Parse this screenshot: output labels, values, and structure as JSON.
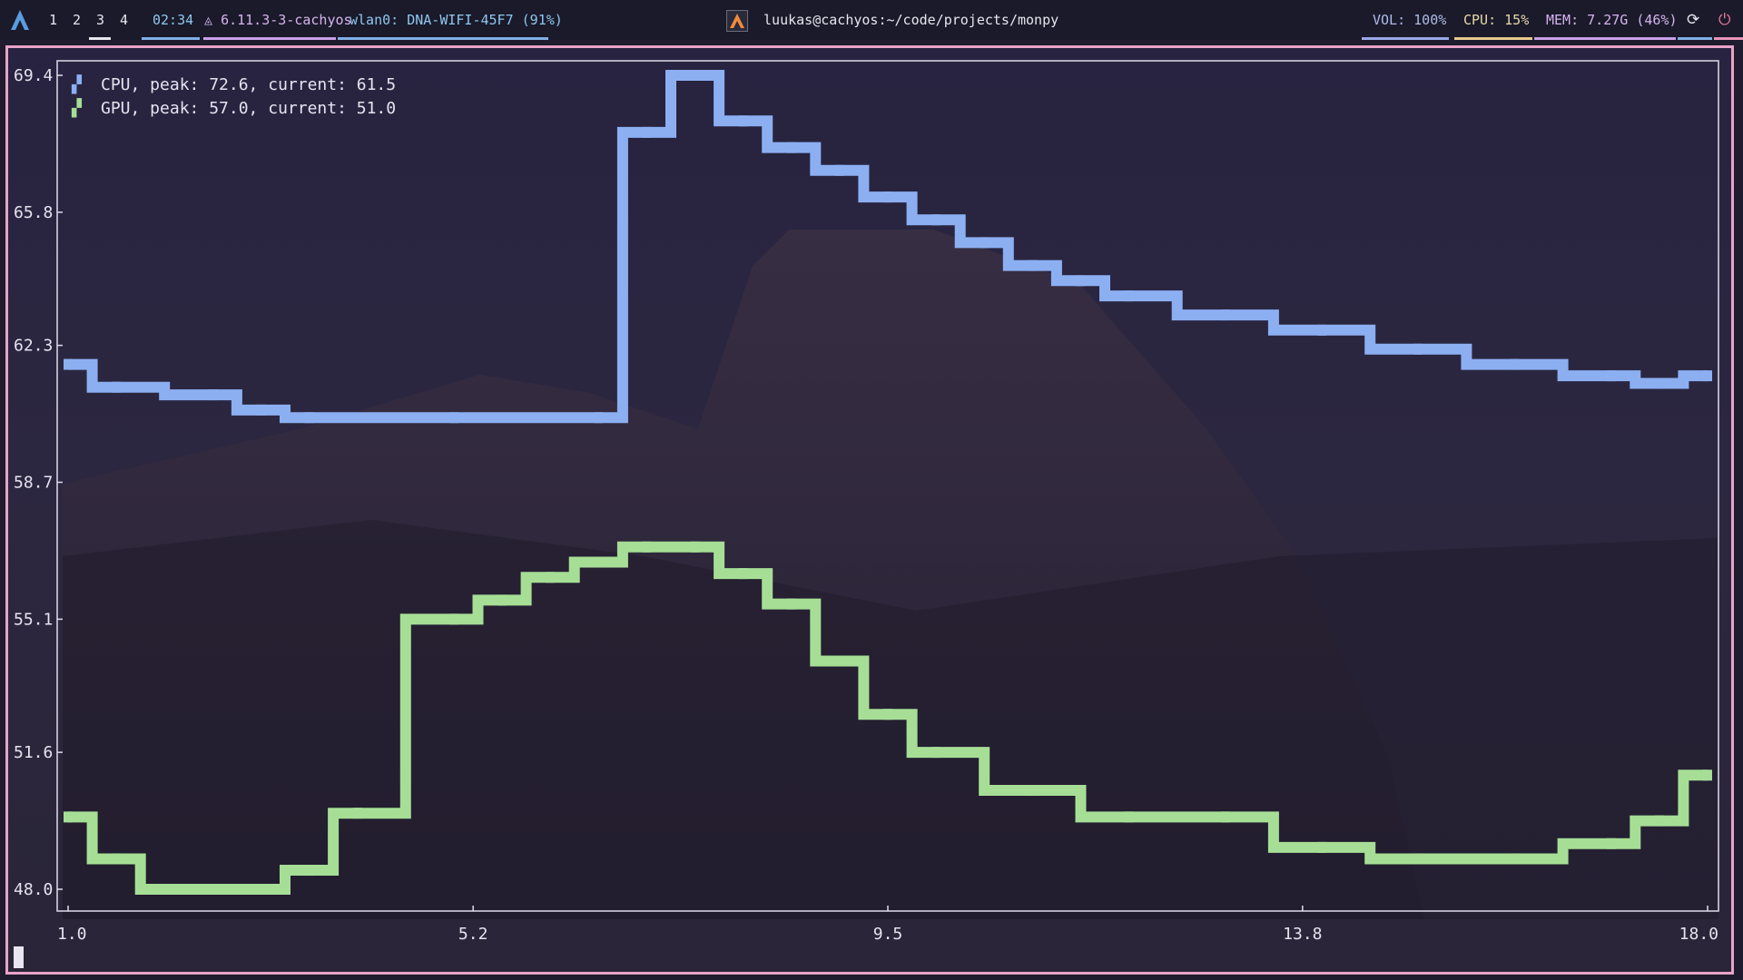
{
  "topbar": {
    "workspaces": [
      "1",
      "2",
      "3",
      "4"
    ],
    "active_workspace": "3",
    "clock": "02:34",
    "kernel": "6.11.3-3-cachyos",
    "network": "wlan0: DNA-WIFI-45F7 (91%)",
    "window_title": "luukas@cachyos:~/code/projects/monpy",
    "volume": "VOL: 100%",
    "cpu": "CPU: 15%",
    "memory": "MEM: 7.27G (46%)"
  },
  "colors": {
    "cpu_series": "#8caff2",
    "gpu_series": "#a6de96",
    "frame_border": "#e8a3c8",
    "accent_blue": "#7fb0e6",
    "accent_pink": "#e794b8"
  },
  "chart_data": {
    "type": "line",
    "y_ticks": [
      "69.4",
      "65.8",
      "62.3",
      "58.7",
      "55.1",
      "51.6",
      "48.0"
    ],
    "x_ticks": [
      "1.0",
      "5.2",
      "9.5",
      "13.8",
      "18.0"
    ],
    "xlim": [
      1.0,
      18.0
    ],
    "ylim": [
      48.0,
      69.4
    ],
    "legend": [
      "CPU, peak: 72.6, current: 61.5",
      "GPU, peak: 57.0, current: 51.0"
    ],
    "series": [
      {
        "name": "CPU",
        "x": [
          1.0,
          1.5,
          2.5,
          3.0,
          3.5,
          5.0,
          6.5,
          7.0,
          7.5,
          8.0,
          8.5,
          9.0,
          9.5,
          10.0,
          10.5,
          11.0,
          11.5,
          12.0,
          13.0,
          14.0,
          15.0,
          16.0,
          17.0,
          17.5,
          18.0
        ],
        "values": [
          61.8,
          61.2,
          61.0,
          60.6,
          60.4,
          60.4,
          60.4,
          67.9,
          69.4,
          68.2,
          67.5,
          66.9,
          66.2,
          65.6,
          65.0,
          64.4,
          64.0,
          63.6,
          63.1,
          62.7,
          62.2,
          61.8,
          61.5,
          61.3,
          61.5
        ],
        "legend_marker": "▞"
      },
      {
        "name": "GPU",
        "x": [
          1.0,
          1.5,
          2.0,
          3.0,
          3.5,
          4.0,
          5.0,
          5.5,
          6.0,
          6.5,
          7.0,
          7.5,
          8.0,
          8.5,
          9.0,
          9.5,
          10.0,
          11.0,
          12.0,
          13.0,
          14.0,
          15.0,
          16.0,
          17.0,
          17.5,
          18.0
        ],
        "values": [
          49.9,
          48.8,
          48.0,
          48.0,
          48.5,
          50.0,
          55.1,
          55.6,
          56.2,
          56.6,
          57.0,
          57.0,
          56.3,
          55.5,
          54.0,
          52.6,
          51.6,
          50.6,
          49.9,
          49.9,
          49.1,
          48.8,
          48.8,
          49.2,
          49.8,
          51.0
        ],
        "legend_marker": "▞"
      }
    ]
  }
}
